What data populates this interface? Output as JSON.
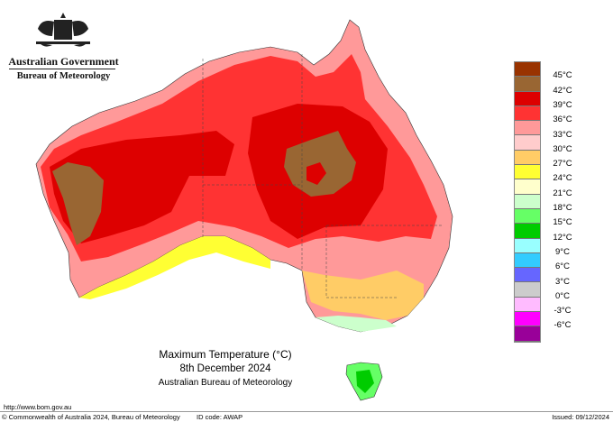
{
  "header": {
    "government": "Australian Government",
    "bureau": "Bureau of Meteorology"
  },
  "title": {
    "line1": "Maximum Temperature (°C)",
    "line2": "8th December 2024",
    "line3": "Australian Bureau of Meteorology"
  },
  "legend": {
    "colors": [
      "#993300",
      "#996633",
      "#dd0000",
      "#ff3333",
      "#ff9999",
      "#ffcccc",
      "#ffcc66",
      "#ffff33",
      "#ffffcc",
      "#ccffcc",
      "#66ff66",
      "#00cc00",
      "#99ffff",
      "#33ccff",
      "#6666ff",
      "#cccccc",
      "#ffbbff",
      "#ff00ff",
      "#990099"
    ],
    "labels": [
      "45°C",
      "42°C",
      "39°C",
      "36°C",
      "33°C",
      "30°C",
      "27°C",
      "24°C",
      "21°C",
      "18°C",
      "15°C",
      "12°C",
      "9°C",
      "6°C",
      "3°C",
      "0°C",
      "-3°C",
      "-6°C"
    ]
  },
  "footer": {
    "url": "http://www.bom.gov.au",
    "copyright": "© Commonwealth of Australia 2024, Bureau of Meteorology",
    "id_code": "ID code: AWAP",
    "issued": "Issued: 09/12/2024"
  }
}
